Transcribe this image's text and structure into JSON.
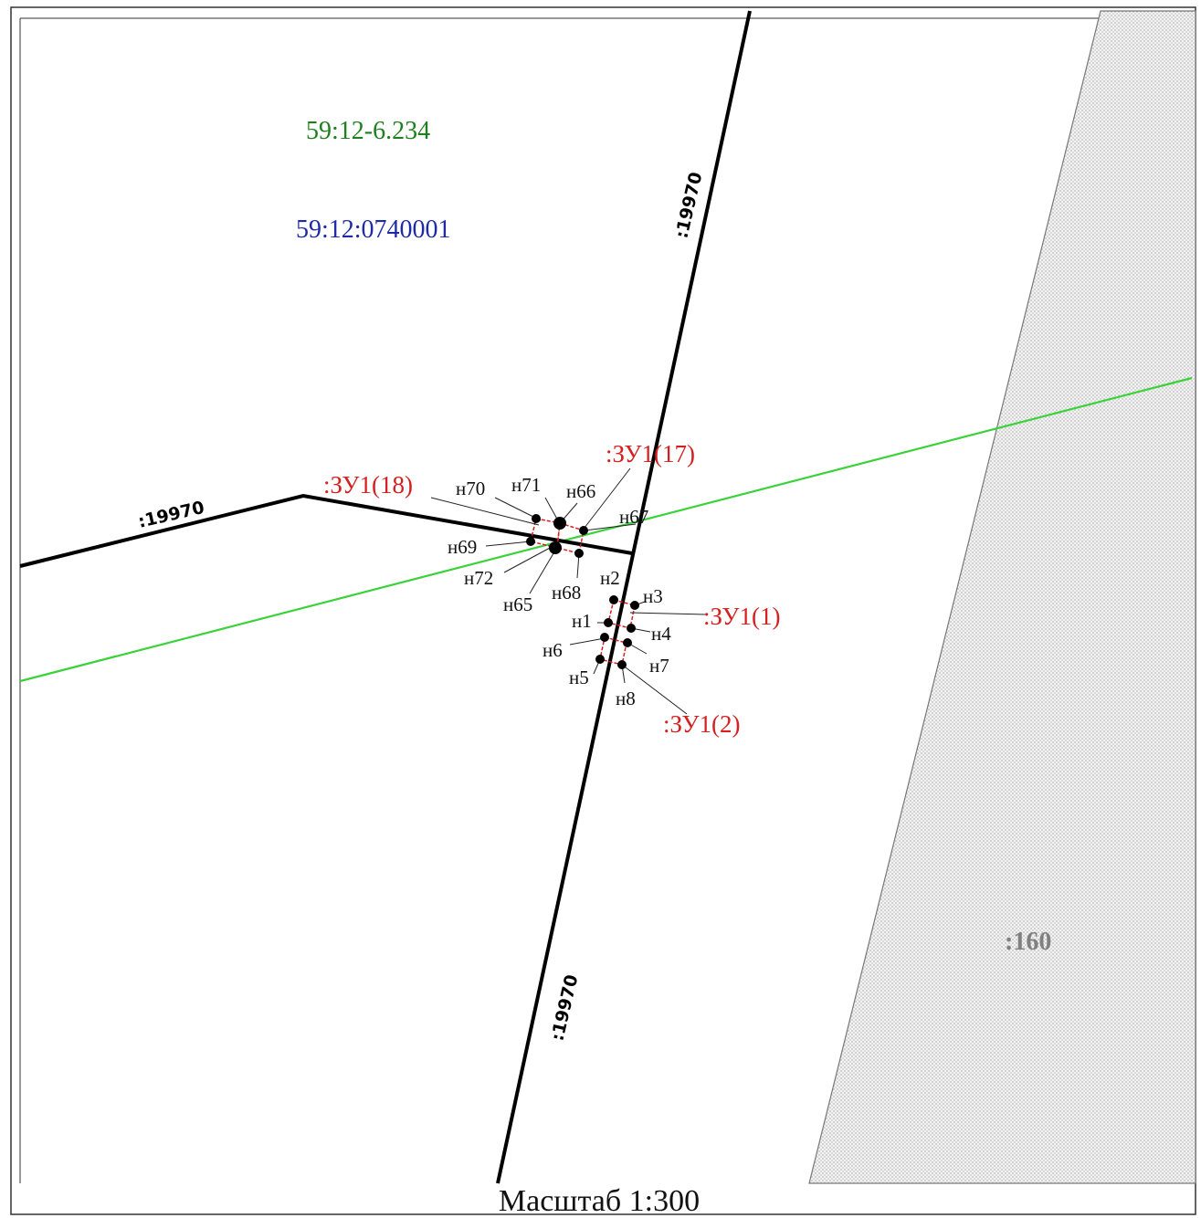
{
  "map": {
    "zone_label": "59:12-6.234",
    "quarter_label": "59:12:0740001",
    "colors": {
      "zone_label": "#1e7f1e",
      "quarter_label": "#1f2aa6",
      "green_line": "#3ad23a",
      "zu_outline": "#d42020",
      "zu_label": "#d42020",
      "road": "#000000",
      "hatched_parcel_label": "#808080"
    },
    "parcel_labels": {
      "road_top": ":19970",
      "road_left": ":19970",
      "road_bottom": ":19970",
      "hatched": ":160"
    },
    "zu_labels": {
      "zu18": ":ЗУ1(18)",
      "zu17": ":ЗУ1(17)",
      "zu1": ":ЗУ1(1)",
      "zu2": ":ЗУ1(2)"
    },
    "point_labels": {
      "n70": "н70",
      "n71": "н71",
      "n66": "н66",
      "n67": "н67",
      "n69": "н69",
      "n72": "н72",
      "n65": "н65",
      "n68": "н68",
      "n2": "н2",
      "n3": "н3",
      "n1": "н1",
      "n4": "н4",
      "n6": "н6",
      "n7": "н7",
      "n5": "н5",
      "n8": "н8"
    },
    "scale": "Масштаб 1:300"
  }
}
